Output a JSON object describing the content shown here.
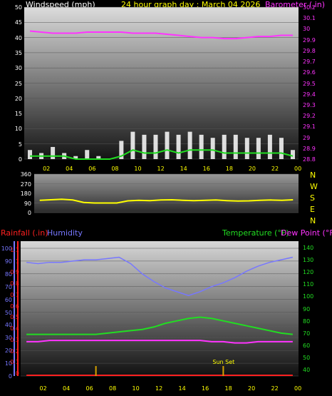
{
  "colors": {
    "windspeed": "#ffffff",
    "gust": "#c8c8c8",
    "avg_wind": "#20dd20",
    "barometer": "#ff33ff",
    "direction": "#ffff00",
    "rainfall": "#ff2020",
    "humidity": "#7777ff",
    "temperature": "#22dd22",
    "dewpoint": "#ff33ff",
    "sun_marker": "#d4a000",
    "x_ticks": "#ffff00"
  },
  "header": {
    "title": "24 hour graph day : March 04 2026",
    "wind_label": "Windspeed (mph)",
    "baro_label": "Barometer (.in)"
  },
  "x_ticks": [
    "02",
    "04",
    "06",
    "08",
    "10",
    "12",
    "14",
    "16",
    "18",
    "20",
    "22",
    "00"
  ],
  "compass": [
    "N",
    "W",
    "S",
    "E",
    "N"
  ],
  "bottom": {
    "rain_label": "Rainfall (.in)",
    "humidity_label": "Humidity",
    "temp_label": "Temperature (°F)",
    "dew_label": "Dew Point (°F)",
    "sunset_label": "Sun Set"
  },
  "chart_data": [
    {
      "type": "line",
      "name": "wind-baro",
      "x_hours": [
        1,
        2,
        3,
        4,
        5,
        6,
        7,
        8,
        9,
        10,
        11,
        12,
        13,
        14,
        15,
        16,
        17,
        18,
        19,
        20,
        21,
        22,
        23,
        24
      ],
      "windspeed_mph": [
        3,
        2,
        4,
        2,
        1,
        3,
        1,
        0,
        6,
        9,
        8,
        8,
        9,
        8,
        9,
        8,
        7,
        8,
        8,
        7,
        7,
        8,
        7,
        3
      ],
      "avg_wind_mph": [
        1,
        1,
        1,
        1,
        0,
        0,
        0,
        0,
        1,
        3,
        2,
        2,
        3,
        2,
        3,
        3,
        3,
        2,
        2,
        2,
        2,
        2,
        2,
        1
      ],
      "barometer_in": [
        29.98,
        29.97,
        29.96,
        29.96,
        29.96,
        29.97,
        29.97,
        29.97,
        29.97,
        29.96,
        29.96,
        29.96,
        29.95,
        29.94,
        29.93,
        29.92,
        29.92,
        29.91,
        29.91,
        29.92,
        29.93,
        29.93,
        29.94,
        29.94
      ],
      "y_left_ticks": [
        "0",
        "5",
        "10",
        "15",
        "20",
        "25",
        "30",
        "35",
        "40",
        "45",
        "50"
      ],
      "y_right_ticks": [
        "28.8",
        "28.9",
        "29",
        "29.1",
        "29.2",
        "29.3",
        "29.4",
        "29.5",
        "29.6",
        "29.7",
        "29.8",
        "29.9",
        "30",
        "30.1",
        "30.2"
      ],
      "ylim_left": [
        0,
        50
      ],
      "ylim_right": [
        28.8,
        30.2
      ]
    },
    {
      "type": "line",
      "name": "direction",
      "x_hours": [
        1,
        2,
        3,
        4,
        5,
        6,
        7,
        8,
        9,
        10,
        11,
        12,
        13,
        14,
        15,
        16,
        17,
        18,
        19,
        20,
        21,
        22,
        23,
        24
      ],
      "direction_deg": [
        115,
        120,
        125,
        118,
        95,
        90,
        90,
        90,
        110,
        115,
        112,
        118,
        120,
        115,
        112,
        115,
        118,
        112,
        108,
        110,
        115,
        118,
        115,
        120
      ],
      "y_ticks": [
        "0",
        "90",
        "180",
        "270",
        "360"
      ],
      "ylim": [
        0,
        360
      ]
    },
    {
      "type": "line",
      "name": "humidity-temp-dew-rain",
      "x_hours": [
        1,
        2,
        3,
        4,
        5,
        6,
        7,
        8,
        9,
        10,
        11,
        12,
        13,
        14,
        15,
        16,
        17,
        18,
        19,
        20,
        21,
        22,
        23,
        24
      ],
      "humidity_pct": [
        89,
        88,
        89,
        89,
        90,
        91,
        91,
        92,
        93,
        88,
        80,
        74,
        69,
        66,
        63,
        66,
        70,
        73,
        77,
        82,
        86,
        89,
        91,
        93
      ],
      "temperature_f": [
        69,
        69,
        69,
        69,
        69,
        69,
        69,
        70,
        71,
        72,
        73,
        75,
        78,
        80,
        82,
        83,
        82,
        80,
        78,
        76,
        74,
        72,
        70,
        69
      ],
      "dewpoint_f": [
        63,
        63,
        64,
        64,
        64,
        64,
        64,
        64,
        64,
        64,
        64,
        64,
        64,
        64,
        64,
        64,
        63,
        63,
        62,
        62,
        63,
        63,
        63,
        63
      ],
      "rainfall_in": [
        0,
        0,
        0,
        0,
        0,
        0,
        0,
        0,
        0,
        0,
        0,
        0,
        0,
        0,
        0,
        0,
        0,
        0,
        0,
        0,
        0,
        0,
        0,
        0
      ],
      "y_rain_ticks": [
        "0",
        "0.1",
        "0.2",
        "0.3",
        "0.4",
        "0.5",
        "0.6",
        "0.7",
        "0.8",
        "0.9",
        "1",
        "1.1"
      ],
      "y_hum_ticks": [
        "0",
        "10",
        "20",
        "30",
        "40",
        "50",
        "60",
        "70",
        "80",
        "90",
        "100"
      ],
      "y_temp_ticks": [
        "40",
        "50",
        "60",
        "70",
        "80",
        "90",
        "100",
        "110",
        "120",
        "130",
        "140"
      ],
      "ylim_humidity": [
        0,
        100
      ],
      "ylim_temp": [
        35,
        145
      ],
      "sunset_hour": 17.5
    }
  ]
}
